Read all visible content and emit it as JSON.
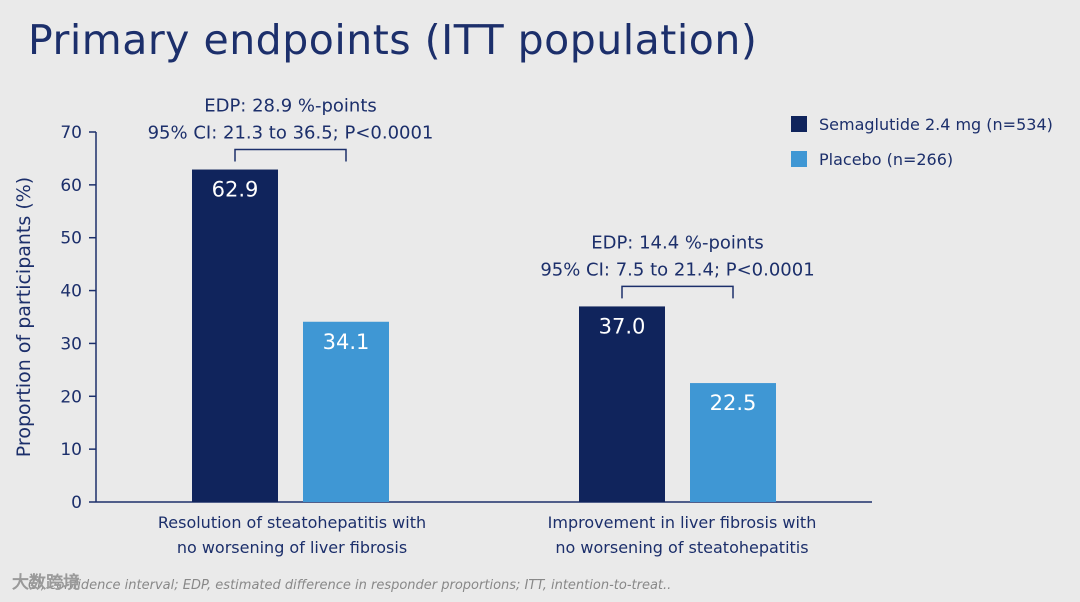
{
  "title": "Primary endpoints (ITT population)",
  "chart_data": {
    "type": "bar",
    "categories": [
      [
        "Resolution of steatohepatitis with",
        "no worsening of liver fibrosis"
      ],
      [
        "Improvement in liver fibrosis with",
        "no worsening of steatohepatitis"
      ]
    ],
    "series": [
      {
        "name": "Semaglutide 2.4 mg (n=534)",
        "values": [
          62.9,
          37.0
        ],
        "labels": [
          "62.9",
          "37.0"
        ],
        "color": "#10245c"
      },
      {
        "name": "Placebo (n=266)",
        "values": [
          34.1,
          22.5
        ],
        "labels": [
          "34.1",
          "22.5"
        ],
        "color": "#3f97d4"
      }
    ],
    "ylabel": "Proportion of participants (%)",
    "ylim": [
      0,
      70
    ],
    "yticks": [
      0,
      10,
      20,
      30,
      40,
      50,
      60,
      70
    ],
    "legend_position": "top-right",
    "grid": false,
    "annotations": [
      {
        "category": 0,
        "lines": [
          "EDP: 28.9 %-points",
          "95% CI: 21.3 to 36.5; P<0.0001"
        ]
      },
      {
        "category": 1,
        "lines": [
          "EDP: 14.4 %-points",
          "95% CI: 7.5 to 21.4; P<0.0001"
        ]
      }
    ]
  },
  "footer": "CI, confidence interval; EDP, estimated difference in responder proportions; ITT, intention-to-treat..",
  "watermark": "大数跨境"
}
